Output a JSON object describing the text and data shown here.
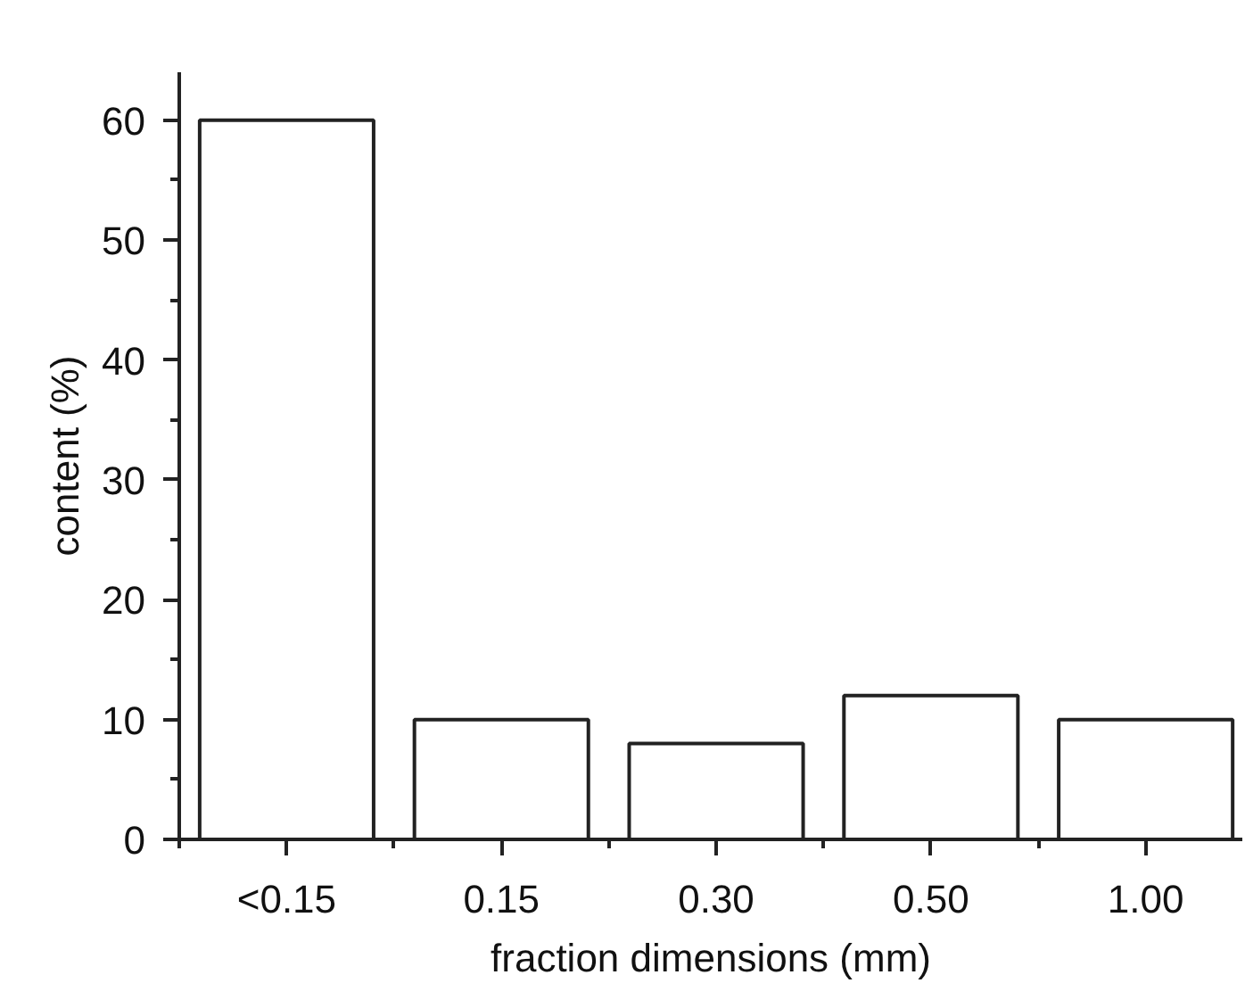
{
  "chart_data": {
    "type": "bar",
    "xlabel": "fraction dimensions (mm)",
    "ylabel": "content (%)",
    "categories": [
      "<0.15",
      "0.15",
      "0.30",
      "0.50",
      "1.00"
    ],
    "values": [
      60,
      10,
      8,
      12,
      10
    ],
    "color": "#ffffff",
    "ylim": [
      0,
      64
    ],
    "yticks": [
      0,
      10,
      20,
      30,
      40,
      50,
      60
    ],
    "grid": false
  }
}
